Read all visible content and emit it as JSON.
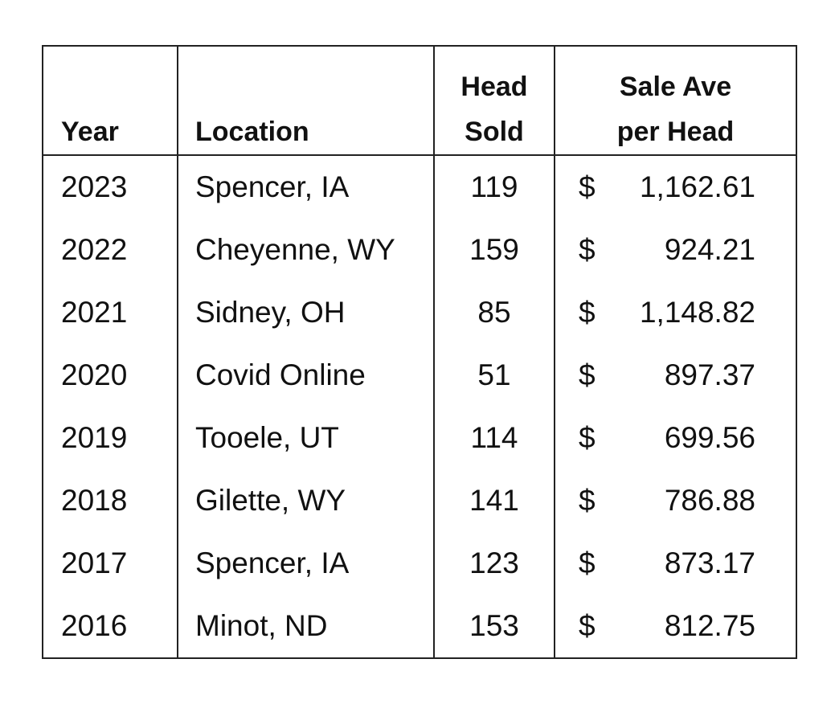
{
  "table": {
    "headers": {
      "year": "Year",
      "location": "Location",
      "head_sold_line1": "Head",
      "head_sold_line2": "Sold",
      "sale_ave_line1": "Sale Ave",
      "sale_ave_line2": "per Head"
    },
    "currency_symbol": "$",
    "rows": [
      {
        "year": "2023",
        "location": "Spencer, IA",
        "head_sold": "119",
        "sale_ave": "1,162.61"
      },
      {
        "year": "2022",
        "location": "Cheyenne, WY",
        "head_sold": "159",
        "sale_ave": "924.21"
      },
      {
        "year": "2021",
        "location": "Sidney, OH",
        "head_sold": "85",
        "sale_ave": "1,148.82"
      },
      {
        "year": "2020",
        "location": "Covid Online",
        "head_sold": "51",
        "sale_ave": "897.37"
      },
      {
        "year": "2019",
        "location": "Tooele, UT",
        "head_sold": "114",
        "sale_ave": "699.56"
      },
      {
        "year": "2018",
        "location": "Gilette, WY",
        "head_sold": "141",
        "sale_ave": "786.88"
      },
      {
        "year": "2017",
        "location": "Spencer, IA",
        "head_sold": "123",
        "sale_ave": "873.17"
      },
      {
        "year": "2016",
        "location": "Minot, ND",
        "head_sold": "153",
        "sale_ave": "812.75"
      }
    ]
  }
}
